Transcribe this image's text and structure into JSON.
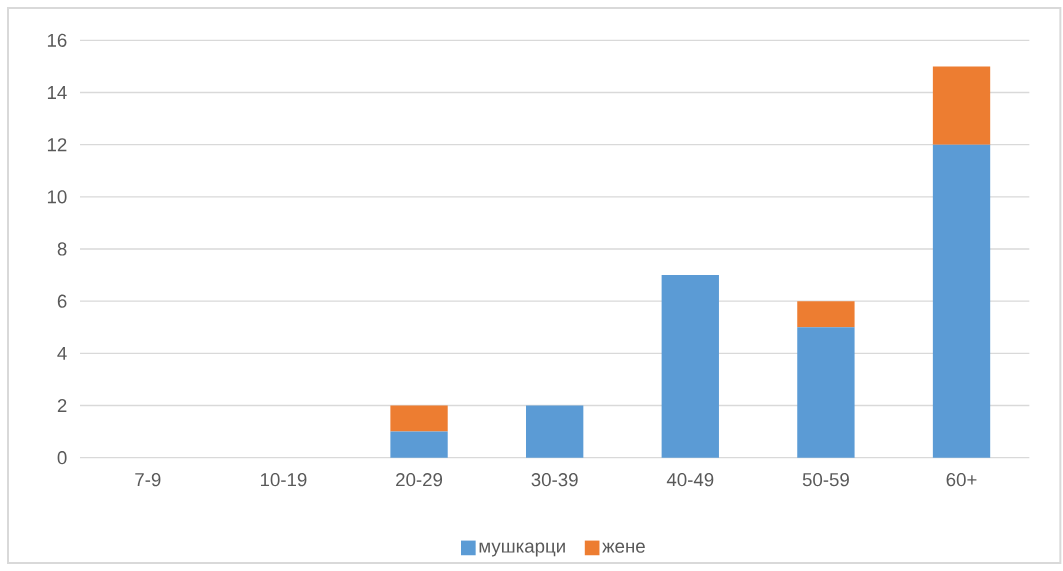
{
  "chart_data": {
    "type": "bar",
    "stacked": true,
    "categories": [
      "7-9",
      "10-19",
      "20-29",
      "30-39",
      "40-49",
      "50-59",
      "60+"
    ],
    "series": [
      {
        "name": "мушкарци",
        "color": "#5b9bd5",
        "values": [
          0,
          0,
          1,
          2,
          7,
          5,
          12
        ]
      },
      {
        "name": "жене",
        "color": "#ed7d31",
        "values": [
          0,
          0,
          1,
          0,
          0,
          1,
          3
        ]
      }
    ],
    "ylim": [
      0,
      16
    ],
    "yticks": [
      0,
      2,
      4,
      6,
      8,
      10,
      12,
      14,
      16
    ],
    "grid": "y",
    "legend": "bottom"
  }
}
